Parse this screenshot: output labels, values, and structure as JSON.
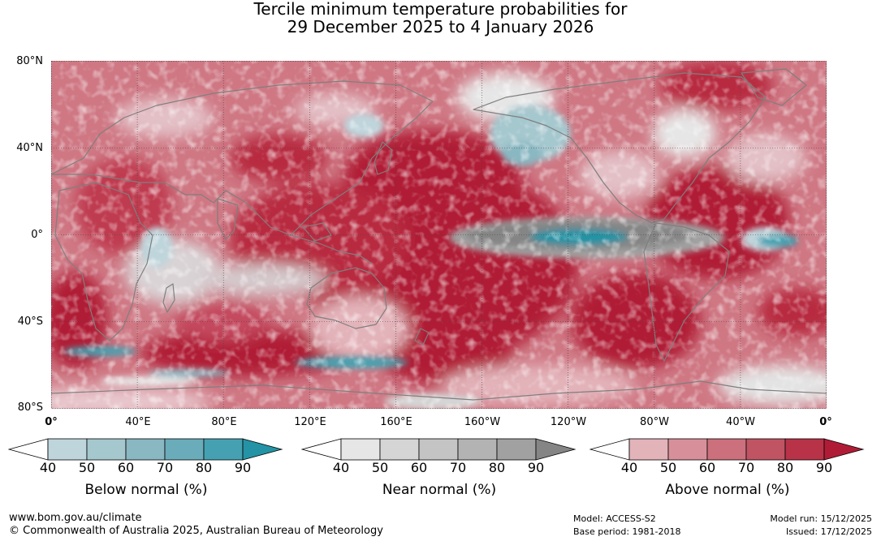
{
  "title": {
    "line1": "Tercile minimum temperature probabilities for",
    "line2": "29 December 2025 to 4 January 2026"
  },
  "map": {
    "lat_labels": [
      "80°N",
      "40°N",
      "0°",
      "40°S",
      "80°S"
    ],
    "lon_labels": [
      "0°",
      "40°E",
      "80°E",
      "120°E",
      "160°E",
      "160°W",
      "120°W",
      "80°W",
      "40°W",
      "0°"
    ]
  },
  "colorbars": [
    {
      "name": "Below normal (%)",
      "ticks": [
        "40",
        "50",
        "60",
        "70",
        "80",
        "90"
      ],
      "colors": [
        "#ffffff",
        "#bfd5dc",
        "#a5c7ce",
        "#89b7c2",
        "#6aacba",
        "#45a1b1",
        "#2493a5"
      ]
    },
    {
      "name": "Near normal (%)",
      "ticks": [
        "40",
        "50",
        "60",
        "70",
        "80",
        "90"
      ],
      "colors": [
        "#ffffff",
        "#e6e6e6",
        "#d5d5d5",
        "#c4c4c4",
        "#b3b3b3",
        "#a1a1a1",
        "#858585"
      ]
    },
    {
      "name": "Above normal (%)",
      "ticks": [
        "40",
        "50",
        "60",
        "70",
        "80",
        "90"
      ],
      "colors": [
        "#ffffff",
        "#e3b3ba",
        "#d7909a",
        "#cb707c",
        "#c05463",
        "#b83347",
        "#b01c36"
      ]
    }
  ],
  "footer": {
    "url": "www.bom.gov.au/climate",
    "copyright": "© Commonwealth of Australia 2025, Australian Bureau of Meteorology",
    "model": "Model: ACCESS-S2",
    "base_period": "Base period: 1981-2018",
    "model_run": "Model run: 15/12/2025",
    "issued": "Issued: 17/12/2025"
  }
}
